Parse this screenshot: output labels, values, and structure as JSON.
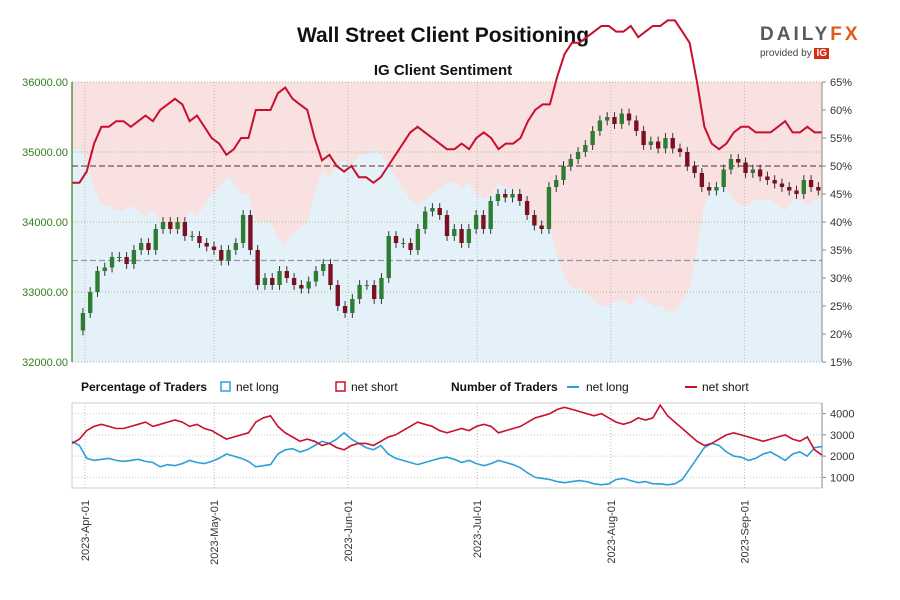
{
  "title": "Wall Street Client Positioning",
  "subtitle": "IG Client Sentiment",
  "logo": {
    "name": "DAILYFX",
    "byline": "provided by",
    "brand": "IG"
  },
  "colors": {
    "net_long": "#2c9fd9",
    "net_short": "#c8102e",
    "candle_up": "#2e7d32",
    "candle_down": "#7a1020",
    "long_fill": "#e4f1f9",
    "short_fill": "#f9e1e1",
    "price_axis": "#2e7d1a"
  },
  "legend": {
    "pct_title": "Percentage of Traders",
    "num_title": "Number of Traders",
    "net_long": "net long",
    "net_short": "net short"
  },
  "chart_data": [
    {
      "type": "candlestick",
      "title": "IG Client Sentiment",
      "x_ticks": [
        "2023-Apr-01",
        "2023-May-01",
        "2023-Jun-01",
        "2023-Jul-01",
        "2023-Aug-01",
        "2023-Sep-01"
      ],
      "x_range": [
        "2023-03-29",
        "2023-09-19"
      ],
      "y_left_ticks": [
        "32000.00",
        "33000.00",
        "34000.00",
        "35000.00",
        "36000.00"
      ],
      "y_left_range": [
        32000,
        36000
      ],
      "y_right_ticks": [
        "15%",
        "20%",
        "25%",
        "30%",
        "35%",
        "40%",
        "45%",
        "50%",
        "55%",
        "60%",
        "65%"
      ],
      "y_right_range": [
        15,
        65
      ],
      "reference_lines": {
        "price": 33450,
        "percent": 50
      },
      "price_closes": [
        32450,
        32700,
        33000,
        33300,
        33350,
        33500,
        33500,
        33400,
        33600,
        33700,
        33600,
        33900,
        34000,
        33900,
        34000,
        33800,
        33800,
        33700,
        33650,
        33600,
        33450,
        33600,
        33700,
        34100,
        33600,
        33100,
        33200,
        33100,
        33300,
        33200,
        33100,
        33050,
        33150,
        33300,
        33400,
        33100,
        32800,
        32700,
        32900,
        33100,
        33100,
        32900,
        33200,
        33800,
        33700,
        33700,
        33600,
        33900,
        34150,
        34200,
        34100,
        33800,
        33900,
        33700,
        33900,
        34100,
        33900,
        34300,
        34400,
        34350,
        34400,
        34300,
        34100,
        33950,
        33900,
        34500,
        34600,
        34800,
        34900,
        35000,
        35100,
        35300,
        35450,
        35500,
        35400,
        35550,
        35450,
        35300,
        35100,
        35150,
        35050,
        35200,
        35050,
        35000,
        34800,
        34700,
        34500,
        34450,
        34500,
        34750,
        34900,
        34850,
        34700,
        34750,
        34650,
        34600,
        34550,
        34500,
        34450,
        34400,
        34600,
        34500,
        34450
      ],
      "net_long_pct": [
        53,
        53,
        51,
        46,
        43,
        43,
        42,
        42,
        43,
        42,
        41,
        42,
        40,
        39,
        38,
        39,
        42,
        41,
        43,
        45,
        46,
        48,
        47,
        45,
        45,
        40,
        40,
        40,
        37,
        36,
        38,
        39,
        40,
        45,
        49,
        48,
        50,
        51,
        50,
        52,
        52,
        53,
        52,
        50,
        48,
        46,
        44,
        43,
        44,
        45,
        46,
        47,
        47,
        46,
        47,
        45,
        44,
        45,
        47,
        46,
        46,
        45,
        42,
        40,
        39,
        39,
        34,
        30,
        28,
        28,
        27,
        26,
        25,
        25,
        26,
        26,
        25,
        27,
        26,
        25,
        25,
        24,
        24,
        26,
        28,
        35,
        43,
        46,
        47,
        46,
        44,
        43,
        43,
        44,
        44,
        44,
        43,
        42,
        44,
        44,
        43,
        44,
        44
      ],
      "net_short_pct": [
        47,
        47,
        49,
        54,
        57,
        57,
        58,
        58,
        57,
        58,
        59,
        58,
        60,
        61,
        62,
        61,
        58,
        59,
        57,
        55,
        54,
        52,
        53,
        55,
        55,
        60,
        60,
        60,
        63,
        64,
        62,
        61,
        60,
        55,
        51,
        52,
        50,
        49,
        50,
        48,
        48,
        47,
        48,
        50,
        52,
        54,
        56,
        57,
        56,
        55,
        54,
        53,
        53,
        54,
        53,
        55,
        56,
        55,
        53,
        54,
        54,
        55,
        58,
        60,
        61,
        61,
        66,
        70,
        72,
        72,
        73,
        74,
        75,
        75,
        74,
        74,
        75,
        73,
        74,
        75,
        75,
        76,
        76,
        74,
        72,
        65,
        57,
        54,
        53,
        54,
        56,
        57,
        57,
        56,
        56,
        56,
        57,
        58,
        56,
        56,
        57,
        56,
        56
      ]
    },
    {
      "type": "line",
      "title": "Number of Traders",
      "y_ticks": [
        "1000",
        "2000",
        "3000",
        "4000"
      ],
      "y_range": [
        500,
        4500
      ],
      "series": [
        {
          "name": "net long",
          "values": [
            2700,
            2500,
            1900,
            1800,
            1850,
            1900,
            1800,
            1750,
            1800,
            1850,
            1750,
            1700,
            1500,
            1600,
            1550,
            1650,
            1800,
            1700,
            1650,
            1750,
            1900,
            2100,
            2000,
            1900,
            1750,
            1500,
            1550,
            1600,
            2100,
            2300,
            2350,
            2200,
            2300,
            2500,
            2700,
            2600,
            2800,
            3100,
            2800,
            2600,
            2400,
            2300,
            2500,
            2100,
            1900,
            1800,
            1700,
            1600,
            1700,
            1800,
            1900,
            1950,
            1850,
            1700,
            1800,
            1650,
            1550,
            1650,
            1800,
            1700,
            1600,
            1450,
            1200,
            1000,
            950,
            900,
            800,
            750,
            800,
            850,
            800,
            700,
            650,
            700,
            900,
            950,
            850,
            750,
            800,
            700,
            700,
            650,
            700,
            900,
            1400,
            1900,
            2400,
            2600,
            2500,
            2200,
            2000,
            1950,
            1800,
            1900,
            2100,
            2200,
            2000,
            1800,
            2100,
            2200,
            2000,
            2400,
            2450
          ]
        },
        {
          "name": "net short",
          "values": [
            2600,
            2800,
            3200,
            3400,
            3500,
            3400,
            3300,
            3300,
            3400,
            3500,
            3600,
            3400,
            3500,
            3600,
            3700,
            3600,
            3400,
            3500,
            3300,
            3200,
            3000,
            2800,
            2900,
            3000,
            3100,
            3600,
            3800,
            3900,
            3400,
            3100,
            2900,
            2700,
            2800,
            2700,
            2500,
            2600,
            2400,
            2300,
            2500,
            2600,
            2600,
            2500,
            2700,
            2900,
            3000,
            3200,
            3400,
            3600,
            3500,
            3400,
            3200,
            3100,
            3200,
            3300,
            3200,
            3400,
            3500,
            3400,
            3100,
            3200,
            3300,
            3400,
            3600,
            3800,
            3900,
            4000,
            4200,
            4300,
            4200,
            4100,
            4000,
            3900,
            4000,
            3800,
            3600,
            3500,
            3600,
            3800,
            3700,
            3800,
            4400,
            3900,
            3600,
            3300,
            3000,
            2700,
            2500,
            2600,
            2800,
            3000,
            3100,
            3000,
            2900,
            2800,
            2700,
            2800,
            2900,
            3000,
            2800,
            2700,
            2900,
            2300,
            2050
          ]
        }
      ]
    }
  ]
}
